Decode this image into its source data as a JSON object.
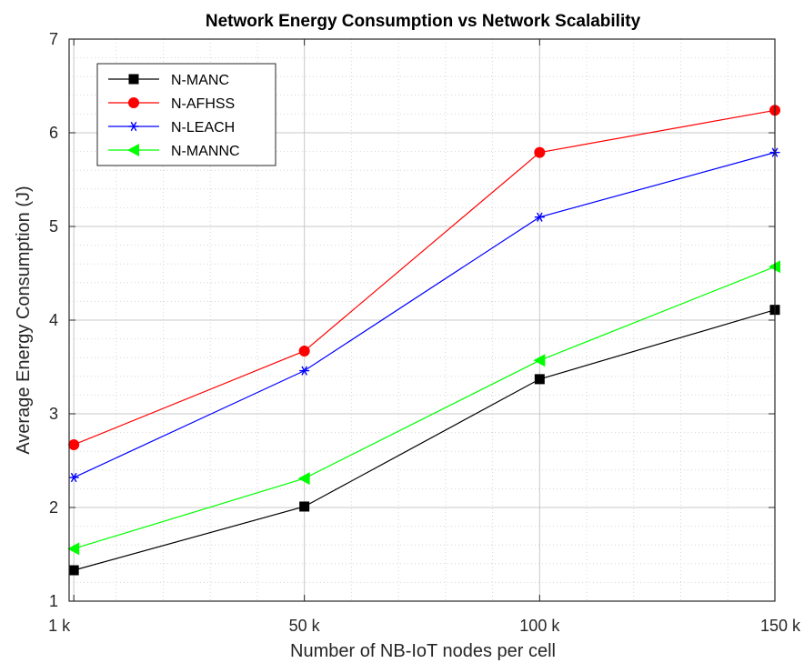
{
  "chart_data": {
    "type": "line",
    "title": "Network Energy Consumption vs Network Scalability",
    "xlabel": "Number of NB-IoT nodes per cell",
    "ylabel": "Average Energy Consumption (J)",
    "x": [
      1,
      50,
      100,
      150
    ],
    "x_tick_labels": [
      "1 k",
      "50 k",
      "100 k",
      "150 k"
    ],
    "y_ticks": [
      "1",
      "2",
      "3",
      "4",
      "5",
      "6",
      "7"
    ],
    "xlim": [
      0,
      150
    ],
    "ylim": [
      1,
      7
    ],
    "grid": true,
    "minor_grid": true,
    "legend_position": "top-left",
    "series": [
      {
        "name": "N-MANC",
        "color": "#000000",
        "marker": "square",
        "values": [
          1.33,
          2.01,
          3.37,
          4.11
        ]
      },
      {
        "name": "N-AFHSS",
        "color": "#ff0000",
        "marker": "circle",
        "values": [
          2.67,
          3.67,
          5.79,
          6.24
        ]
      },
      {
        "name": "N-LEACH",
        "color": "#0000ff",
        "marker": "asterisk",
        "values": [
          2.32,
          3.46,
          5.1,
          5.79
        ]
      },
      {
        "name": "N-MANNC",
        "color": "#00ff00",
        "marker": "triangle-left",
        "values": [
          1.56,
          2.31,
          3.57,
          4.57
        ]
      }
    ]
  }
}
